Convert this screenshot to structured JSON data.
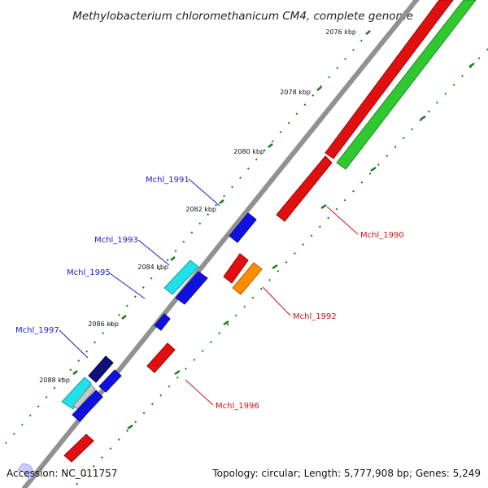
{
  "title": "Methylobacterium chloromethanicum CM4, complete genome",
  "footer": {
    "accession": "Accession: NC_011757",
    "summary": "Topology: circular; Length: 5,777,908 bp; Genes: 5,249"
  },
  "ticks": [
    {
      "label": "2076 kbp"
    },
    {
      "label": "2078 kbp"
    },
    {
      "label": "2080 kbp"
    },
    {
      "label": "2082 kbp"
    },
    {
      "label": "2084 kbp"
    },
    {
      "label": "2086 kbp"
    },
    {
      "label": "2088 kbp"
    }
  ],
  "genes": [
    {
      "label": "Mchl_1990",
      "strand": "outer",
      "color": "#e01010"
    },
    {
      "label": "Mchl_1991",
      "strand": "inner",
      "color": "#1010e0"
    },
    {
      "label": "Mchl_1992",
      "strand": "outer",
      "color": "#ff8c00"
    },
    {
      "label": "Mchl_1993",
      "strand": "inner",
      "color": "#20e0e8"
    },
    {
      "label": "Mchl_1995",
      "strand": "inner",
      "color": "#1010e0"
    },
    {
      "label": "Mchl_1996",
      "strand": "outer",
      "color": "#e01010"
    },
    {
      "label": "Mchl_1997",
      "strand": "inner",
      "color": "#10107a"
    }
  ],
  "colors": {
    "backbone": "#8a8a8a",
    "tick": "#1a7a1a",
    "gc_track": "#30c830",
    "forward": "#e01010",
    "reverse": "#1010e0"
  }
}
